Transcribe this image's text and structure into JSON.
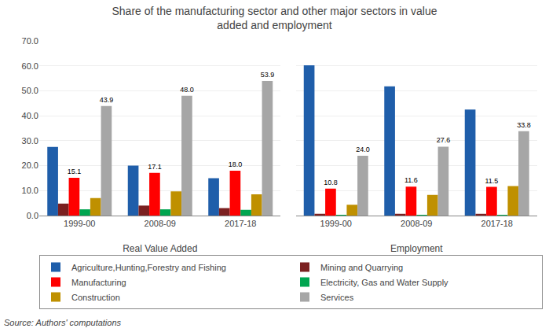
{
  "chart_data": [
    {
      "type": "bar",
      "title": "Share of the manufacturing sector and other major sectors in value\nadded and employment",
      "xlabel": "Real Value Added",
      "categories": [
        "1999-00",
        "2008-09",
        "2017-18"
      ],
      "series": [
        {
          "name": "Agriculture,Hunting,Forestry and Fishing",
          "color": "#1F5EAA",
          "values": [
            27.5,
            20.0,
            15.0
          ]
        },
        {
          "name": "Mining and Quarrying",
          "color": "#7B2020",
          "values": [
            4.8,
            4.0,
            3.0
          ]
        },
        {
          "name": "Manufacturing",
          "color": "#FF0000",
          "values": [
            15.1,
            17.1,
            18.0
          ],
          "data_labels": true,
          "value_labels": [
            "15.1",
            "17.1",
            "18.0"
          ]
        },
        {
          "name": "Electricity, Gas and Water Supply",
          "color": "#00A550",
          "values": [
            2.5,
            2.5,
            2.3
          ]
        },
        {
          "name": "Construction",
          "color": "#BF9000",
          "values": [
            7.0,
            9.7,
            8.5
          ]
        },
        {
          "name": "Services",
          "color": "#A6A6A6",
          "values": [
            43.9,
            48.0,
            53.9
          ],
          "data_labels": true,
          "value_labels": [
            "43.9",
            "48.0",
            "53.9"
          ]
        }
      ],
      "ylim": [
        0,
        70
      ],
      "yticks": [
        {
          "value": 0,
          "label": "0.0"
        },
        {
          "value": 10,
          "label": "10.0"
        },
        {
          "value": 20,
          "label": "20.0"
        },
        {
          "value": 30,
          "label": "30.0"
        },
        {
          "value": 40,
          "label": "40.0"
        },
        {
          "value": 50,
          "label": "50.0"
        },
        {
          "value": 60,
          "label": "60.0"
        },
        {
          "value": 70,
          "label": "70.0"
        }
      ],
      "grid": true,
      "legend": "bottom",
      "annotations": [
        {
          "text": "Source: Authors' computations"
        }
      ]
    },
    {
      "type": "bar",
      "xlabel": "Employment",
      "categories": [
        "1999-00",
        "2008-09",
        "2017-18"
      ],
      "series": [
        {
          "name": "Agriculture,Hunting,Forestry and Fishing",
          "color": "#1F5EAA",
          "values": [
            60.2,
            51.8,
            42.5
          ]
        },
        {
          "name": "Mining and Quarrying",
          "color": "#7B2020",
          "values": [
            0.7,
            0.7,
            0.7
          ]
        },
        {
          "name": "Manufacturing",
          "color": "#FF0000",
          "values": [
            10.8,
            11.6,
            11.5
          ],
          "data_labels": true,
          "value_labels": [
            "10.8",
            "11.6",
            "11.5"
          ]
        },
        {
          "name": "Electricity, Gas and Water Supply",
          "color": "#00A550",
          "values": [
            0.05,
            0.05,
            0.05
          ]
        },
        {
          "name": "Construction",
          "color": "#BF9000",
          "values": [
            4.3,
            8.3,
            11.8
          ]
        },
        {
          "name": "Services",
          "color": "#A6A6A6",
          "values": [
            24.0,
            27.6,
            33.8
          ],
          "data_labels": true,
          "value_labels": [
            "24.0",
            "27.6",
            "33.8"
          ]
        }
      ],
      "ylim": [
        0,
        70
      ],
      "yticks": [
        {
          "value": 0,
          "label": "0.0"
        },
        {
          "value": 10,
          "label": "10.0"
        },
        {
          "value": 20,
          "label": "20.0"
        },
        {
          "value": 30,
          "label": "30.0"
        },
        {
          "value": 40,
          "label": "40.0"
        },
        {
          "value": 50,
          "label": "50.0"
        },
        {
          "value": 60,
          "label": "60.0"
        },
        {
          "value": 70,
          "label": "70.0"
        }
      ],
      "grid": true,
      "tick_labels": "x"
    }
  ]
}
